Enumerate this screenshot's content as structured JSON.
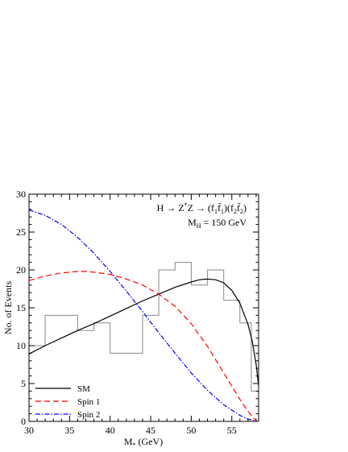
{
  "chart_data": {
    "type": "line",
    "annotation": {
      "line1": "H → Z*Z → (f1f̄1)(f2f̄2)",
      "line2": "M_H = 150 GeV",
      "line1_parts": [
        "H → Z",
        "*",
        "Z → (f",
        "1",
        "f̄",
        "1",
        ")(f",
        "2",
        "f̄",
        "2",
        ")"
      ],
      "line2_parts": [
        "M",
        "H",
        " = 150 GeV"
      ]
    },
    "xlabel": "M* (GeV)",
    "xlabel_parts": [
      "M",
      "*",
      " (GeV)"
    ],
    "ylabel": "No. of Events",
    "xlim": [
      30,
      58.3
    ],
    "ylim": [
      0,
      30
    ],
    "xticks": [
      30,
      35,
      40,
      45,
      50,
      55
    ],
    "yticks": [
      0,
      5,
      10,
      15,
      20,
      25,
      30
    ],
    "grid": false,
    "legend_position": "bottom-left",
    "series": [
      {
        "name": "SM",
        "style": "solid",
        "color": "#000000",
        "x": [
          30,
          32,
          34,
          36,
          38,
          40,
          42,
          44,
          46,
          48,
          50,
          51,
          52,
          53,
          54,
          55,
          56,
          57,
          57.5,
          58,
          58.3
        ],
        "y": [
          8.9,
          10.0,
          11.0,
          12.0,
          12.9,
          13.9,
          14.9,
          15.9,
          16.8,
          17.7,
          18.4,
          18.7,
          18.8,
          18.7,
          18.3,
          17.3,
          15.6,
          12.8,
          10.7,
          7.5,
          4.7
        ]
      },
      {
        "name": "Spin 1",
        "style": "dashed",
        "color": "#ff0000",
        "x": [
          30,
          32,
          34,
          36,
          37,
          38,
          40,
          42,
          44,
          46,
          48,
          50,
          52,
          54,
          56,
          57,
          58
        ],
        "y": [
          18.6,
          19.2,
          19.6,
          19.8,
          19.8,
          19.7,
          19.4,
          18.8,
          18.0,
          16.8,
          15.2,
          12.9,
          9.9,
          6.4,
          2.9,
          1.3,
          0.1
        ]
      },
      {
        "name": "Spin 2",
        "style": "dashdot",
        "color": "#0000ff",
        "x": [
          30,
          32,
          34,
          36,
          38,
          40,
          42,
          44,
          46,
          48,
          50,
          52,
          54,
          56,
          57,
          58
        ],
        "y": [
          27.9,
          27.2,
          26.0,
          24.3,
          22.2,
          19.8,
          17.2,
          14.5,
          11.7,
          9.0,
          6.4,
          4.1,
          2.2,
          0.8,
          0.3,
          0.05
        ]
      }
    ],
    "histogram": {
      "color": "#888888",
      "edges": [
        30,
        32,
        36,
        38,
        40,
        44,
        46,
        48,
        50,
        52,
        54,
        56,
        57.4,
        58.3
      ],
      "counts": [
        10,
        14,
        12,
        13,
        9,
        14,
        20,
        21,
        18,
        20,
        16,
        13,
        4
      ]
    }
  }
}
